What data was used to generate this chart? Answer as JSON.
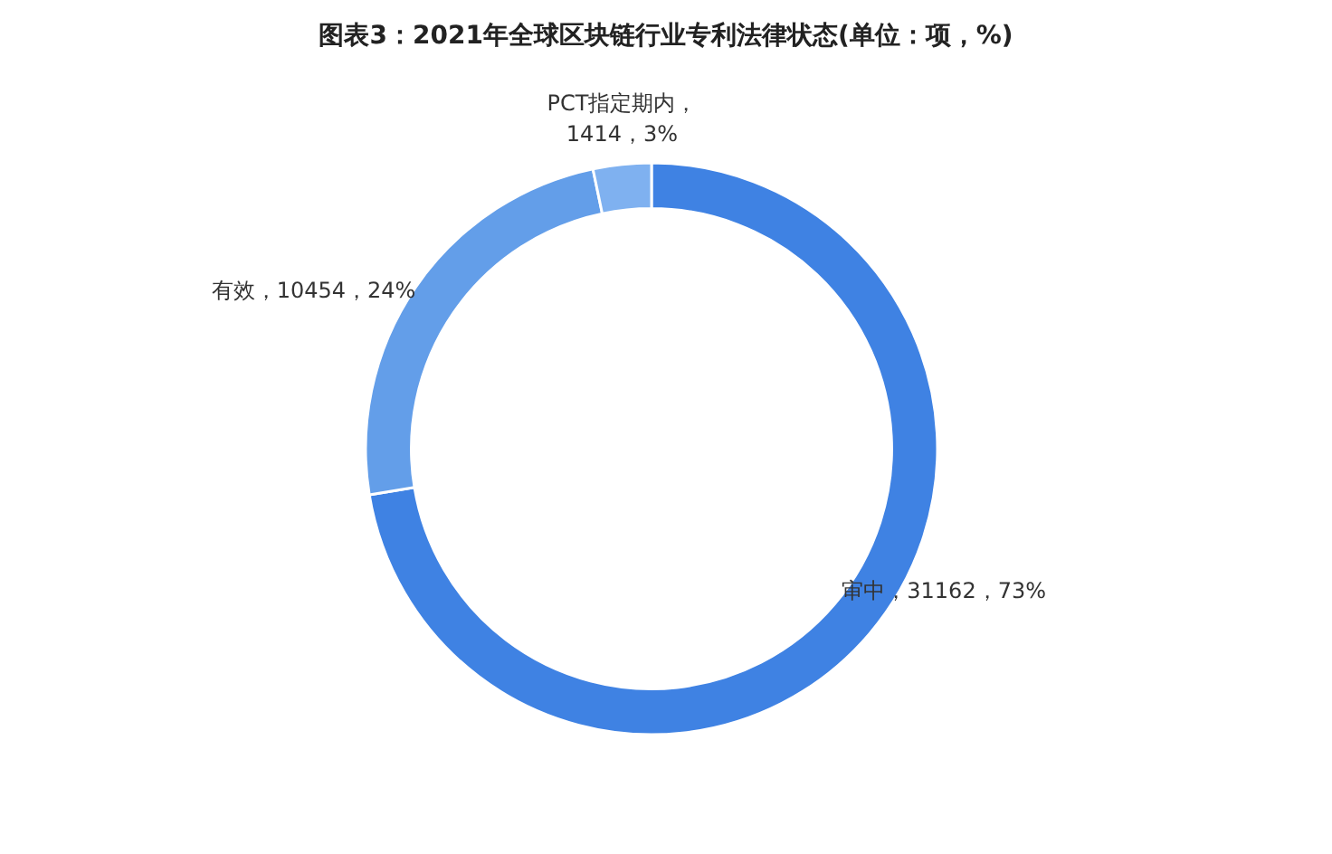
{
  "chart_data": {
    "type": "donut",
    "title": "图表3：2021年全球区块链行业专利法律状态(单位：项，%)",
    "categories": [
      "审中",
      "有效",
      "PCT指定期内"
    ],
    "values": [
      31162,
      10454,
      1414
    ],
    "colors": [
      "#3f82e3",
      "#639ee9",
      "#7fb1f0"
    ],
    "value_labels": [
      "，31162，73%",
      "，10454，24%",
      "，1414，3%"
    ]
  }
}
